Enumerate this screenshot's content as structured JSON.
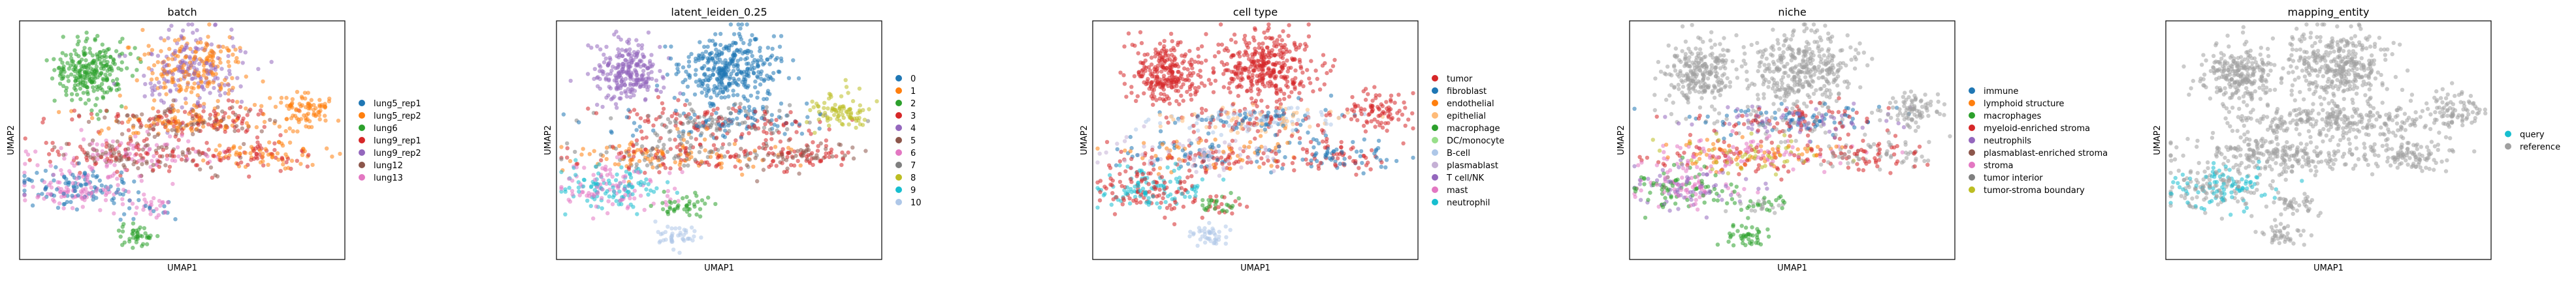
{
  "chart_data": [
    {
      "type": "scatter",
      "title": "batch",
      "xlabel": "UMAP1",
      "ylabel": "UMAP2",
      "legend_position": "right",
      "series": [
        {
          "name": "lung5_rep1",
          "color": "#1f77b4"
        },
        {
          "name": "lung5_rep2",
          "color": "#ff7f0e"
        },
        {
          "name": "lung6",
          "color": "#2ca02c"
        },
        {
          "name": "lung9_rep1",
          "color": "#d62728"
        },
        {
          "name": "lung9_rep2",
          "color": "#9467bd"
        },
        {
          "name": "lung12",
          "color": "#8c564b"
        },
        {
          "name": "lung13",
          "color": "#e377c2"
        }
      ]
    },
    {
      "type": "scatter",
      "title": "latent_leiden_0.25",
      "xlabel": "UMAP1",
      "ylabel": "UMAP2",
      "legend_position": "right",
      "series": [
        {
          "name": "0",
          "color": "#1f77b4"
        },
        {
          "name": "1",
          "color": "#ff7f0e"
        },
        {
          "name": "2",
          "color": "#2ca02c"
        },
        {
          "name": "3",
          "color": "#d62728"
        },
        {
          "name": "4",
          "color": "#9467bd"
        },
        {
          "name": "5",
          "color": "#8c564b"
        },
        {
          "name": "6",
          "color": "#e377c2"
        },
        {
          "name": "7",
          "color": "#7f7f7f"
        },
        {
          "name": "8",
          "color": "#bcbd22"
        },
        {
          "name": "9",
          "color": "#17becf"
        },
        {
          "name": "10",
          "color": "#aec7e8"
        }
      ]
    },
    {
      "type": "scatter",
      "title": "cell type",
      "xlabel": "UMAP1",
      "ylabel": "UMAP2",
      "legend_position": "right",
      "series": [
        {
          "name": "tumor",
          "color": "#d62728"
        },
        {
          "name": "fibroblast",
          "color": "#1f77b4"
        },
        {
          "name": "endothelial",
          "color": "#ff7f0e"
        },
        {
          "name": "epithelial",
          "color": "#ffbb78"
        },
        {
          "name": "macrophage",
          "color": "#2ca02c"
        },
        {
          "name": "DC/monocyte",
          "color": "#98df8a"
        },
        {
          "name": "B-cell",
          "color": "#aec7e8"
        },
        {
          "name": "plasmablast",
          "color": "#c5b0d5"
        },
        {
          "name": "T cell/NK",
          "color": "#9467bd"
        },
        {
          "name": "mast",
          "color": "#e377c2"
        },
        {
          "name": "neutrophil",
          "color": "#17becf"
        }
      ]
    },
    {
      "type": "scatter",
      "title": "niche",
      "xlabel": "UMAP1",
      "ylabel": "UMAP2",
      "legend_position": "right",
      "series": [
        {
          "name": "immune",
          "color": "#1f77b4"
        },
        {
          "name": "lymphoid structure",
          "color": "#ff7f0e"
        },
        {
          "name": "macrophages",
          "color": "#2ca02c"
        },
        {
          "name": "myeloid-enriched stroma",
          "color": "#d62728"
        },
        {
          "name": "neutrophils",
          "color": "#9467bd"
        },
        {
          "name": "plasmablast-enriched stroma",
          "color": "#8c564b"
        },
        {
          "name": "stroma",
          "color": "#e377c2"
        },
        {
          "name": "tumor interior",
          "color": "#7f7f7f"
        },
        {
          "name": "tumor-stroma boundary",
          "color": "#bcbd22"
        }
      ]
    },
    {
      "type": "scatter",
      "title": "mapping_entity",
      "xlabel": "UMAP1",
      "ylabel": "UMAP2",
      "legend_position": "right",
      "series": [
        {
          "name": "query",
          "color": "#17becf"
        },
        {
          "name": "reference",
          "color": "#a0a0a0"
        }
      ]
    }
  ]
}
